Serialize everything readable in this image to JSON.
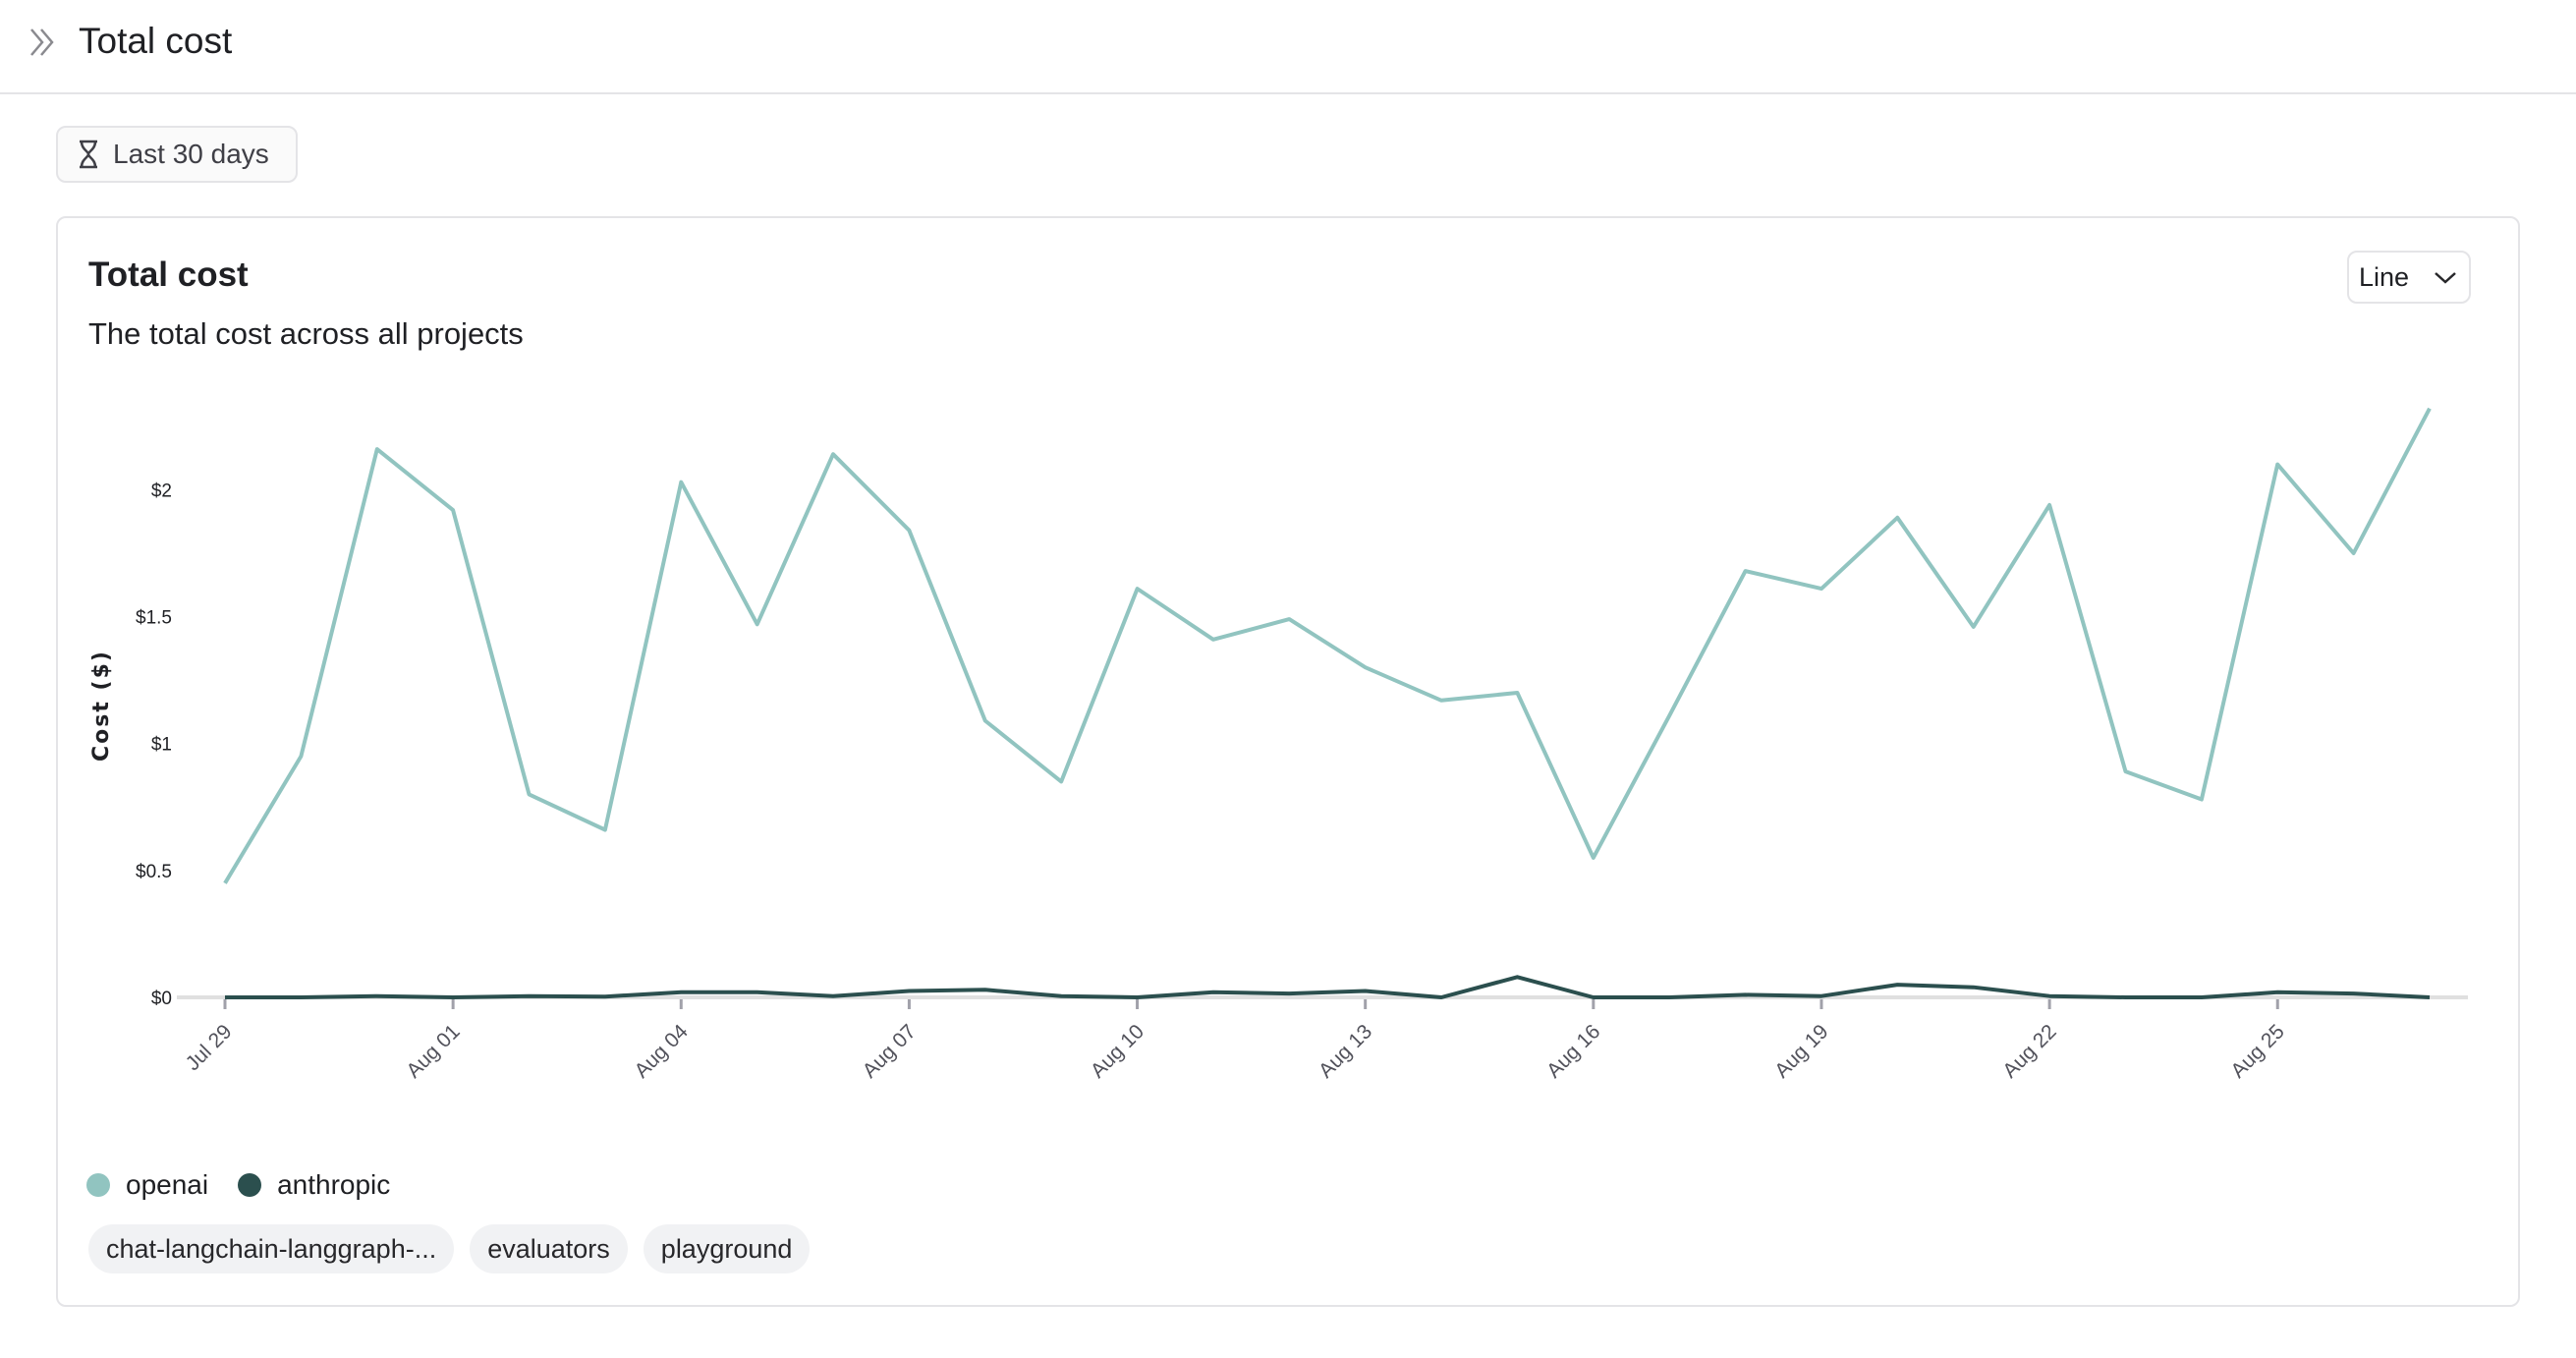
{
  "header": {
    "title": "Total cost",
    "expand_icon": "double-chevron-right-icon"
  },
  "filters": {
    "time_range_label": "Last 30 days",
    "time_range_icon": "hourglass-icon"
  },
  "card": {
    "title": "Total cost",
    "subtitle": "The total cost across all projects",
    "chart_type_select": "Line"
  },
  "projects": [
    "chat-langchain-langgraph-...",
    "evaluators",
    "playground"
  ],
  "chart_data": {
    "type": "line",
    "ylabel": "Cost ($)",
    "xlabel": "",
    "ylim": [
      0,
      2.4
    ],
    "y_ticks": [
      0,
      0.5,
      1,
      1.5,
      2
    ],
    "y_tick_labels": [
      "$0",
      "$0.5",
      "$1",
      "$1.5",
      "$2"
    ],
    "x": [
      "Jul 29",
      "Jul 30",
      "Jul 31",
      "Aug 01",
      "Aug 02",
      "Aug 03",
      "Aug 04",
      "Aug 05",
      "Aug 06",
      "Aug 07",
      "Aug 08",
      "Aug 09",
      "Aug 10",
      "Aug 11",
      "Aug 12",
      "Aug 13",
      "Aug 14",
      "Aug 15",
      "Aug 16",
      "Aug 17",
      "Aug 18",
      "Aug 19",
      "Aug 20",
      "Aug 21",
      "Aug 22",
      "Aug 23",
      "Aug 24",
      "Aug 25",
      "Aug 26",
      "Aug 27"
    ],
    "x_tick_labels": [
      "Jul 29",
      "Aug 01",
      "Aug 04",
      "Aug 07",
      "Aug 10",
      "Aug 13",
      "Aug 16",
      "Aug 19",
      "Aug 22",
      "Aug 25"
    ],
    "grid": false,
    "legend": "bottom-left",
    "series": [
      {
        "name": "openai",
        "color": "#91c4c0",
        "values": [
          0.45,
          0.95,
          2.16,
          1.92,
          0.8,
          0.66,
          2.03,
          1.47,
          2.14,
          1.84,
          1.09,
          0.85,
          1.61,
          1.41,
          1.49,
          1.3,
          1.17,
          1.2,
          0.55,
          1.11,
          1.68,
          1.61,
          1.89,
          1.46,
          1.94,
          0.89,
          0.78,
          2.1,
          1.75,
          2.32
        ]
      },
      {
        "name": "anthropic",
        "color": "#2b4f4e",
        "values": [
          0,
          0,
          0.005,
          0,
          0.005,
          0.003,
          0.02,
          0.02,
          0.005,
          0.025,
          0.03,
          0.005,
          0,
          0.02,
          0.015,
          0.025,
          0,
          0.08,
          0,
          0,
          0.01,
          0.005,
          0.05,
          0.04,
          0.005,
          0,
          0,
          0.02,
          0.015,
          0
        ]
      }
    ]
  }
}
